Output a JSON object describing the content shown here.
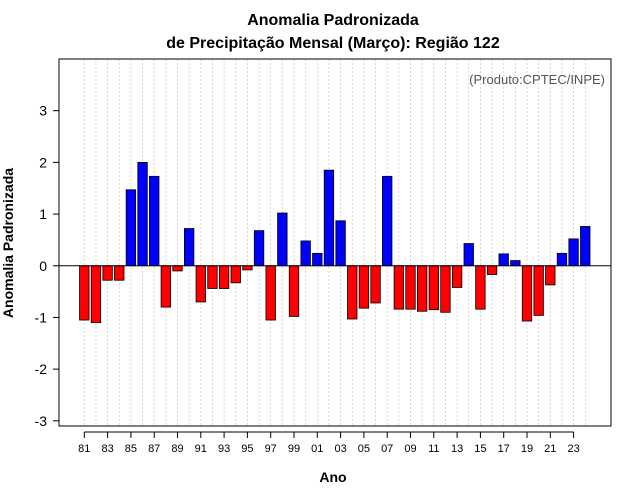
{
  "chart_data": {
    "type": "bar",
    "title": [
      "Anomalia Padronizada",
      "de Precipitação Mensal (Março): Região 122"
    ],
    "xlabel": "Ano",
    "ylabel": "Anomalia Padronizada",
    "credit": "(Produto:CPTEC/INPE)",
    "ylim": [
      -3.1,
      4.0
    ],
    "yticks": [
      -3,
      -2,
      -1,
      0,
      1,
      2,
      3
    ],
    "ytick_labels": [
      "-3",
      "-2",
      "-1",
      "0",
      "1",
      "2",
      "3"
    ],
    "xtick_labels": [
      "81",
      "83",
      "85",
      "87",
      "89",
      "91",
      "93",
      "95",
      "97",
      "99",
      "01",
      "03",
      "05",
      "07",
      "09",
      "11",
      "13",
      "15",
      "17",
      "19",
      "21",
      "23"
    ],
    "categories": [
      "1981",
      "1982",
      "1983",
      "1984",
      "1985",
      "1986",
      "1987",
      "1988",
      "1989",
      "1990",
      "1991",
      "1992",
      "1993",
      "1994",
      "1995",
      "1996",
      "1997",
      "1998",
      "1999",
      "2000",
      "2001",
      "2002",
      "2003",
      "2004",
      "2005",
      "2006",
      "2007",
      "2008",
      "2009",
      "2010",
      "2011",
      "2012",
      "2013",
      "2014",
      "2015",
      "2016",
      "2017",
      "2018",
      "2019",
      "2020",
      "2021",
      "2022",
      "2023",
      "2024"
    ],
    "values": [
      -1.05,
      -1.1,
      -0.28,
      -0.28,
      1.47,
      2.0,
      1.73,
      -0.8,
      -0.1,
      0.72,
      -0.7,
      -0.44,
      -0.44,
      -0.33,
      -0.08,
      0.68,
      -1.05,
      1.02,
      -0.98,
      0.48,
      0.24,
      1.85,
      0.87,
      -1.03,
      -0.82,
      -0.72,
      1.73,
      -0.84,
      -0.84,
      -0.88,
      -0.85,
      -0.9,
      -0.42,
      0.43,
      -0.84,
      -0.17,
      0.23,
      0.1,
      -1.07,
      -0.96,
      -0.37,
      0.24,
      0.52,
      0.76
    ],
    "colors": {
      "positive": "#0000ff",
      "negative": "#ff0000",
      "grid": "#cccccc",
      "axis": "#000000"
    },
    "grid": true
  }
}
